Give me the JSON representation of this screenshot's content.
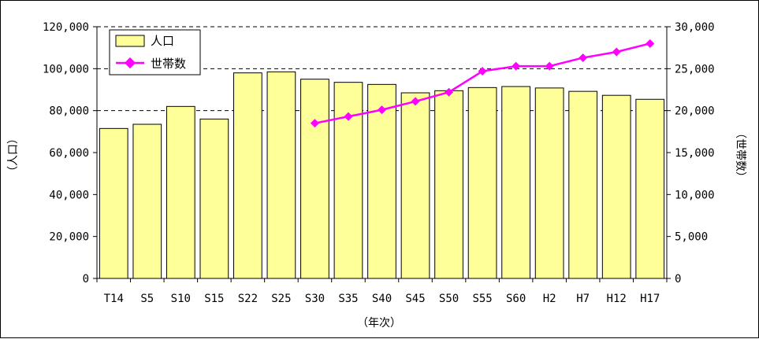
{
  "chart_data": {
    "type": "bar+line",
    "categories": [
      "T14",
      "S5",
      "S10",
      "S15",
      "S22",
      "S25",
      "S30",
      "S35",
      "S40",
      "S45",
      "S50",
      "S55",
      "S60",
      "H2",
      "H7",
      "H12",
      "H17"
    ],
    "series": [
      {
        "name": "人口",
        "type": "bar",
        "axis": "left",
        "color": "#FFFF99",
        "values": [
          71500,
          73500,
          82000,
          76000,
          98000,
          98500,
          95000,
          93500,
          92500,
          88500,
          89500,
          91000,
          91500,
          90800,
          89200,
          87300,
          85400
        ]
      },
      {
        "name": "世帯数",
        "type": "line",
        "axis": "right",
        "color": "#FF00FF",
        "values": [
          null,
          null,
          null,
          null,
          null,
          null,
          18500,
          19300,
          20100,
          21100,
          22200,
          24700,
          25300,
          25300,
          26300,
          27000,
          28000
        ]
      }
    ],
    "xlabel": "（年次）",
    "ylabel_left": "（人口）",
    "ylabel_right": "（世帯数）",
    "ylim_left": [
      0,
      120000
    ],
    "ylim_right": [
      0,
      30000
    ],
    "yticks_left": [
      "0",
      "20,000",
      "40,000",
      "60,000",
      "80,000",
      "100,000",
      "120,000"
    ],
    "yticks_right": [
      "0",
      "5,000",
      "10,000",
      "15,000",
      "20,000",
      "25,000",
      "30,000"
    ],
    "grid": "dashed horizontal at 80,000, 100,000, 120,000",
    "legend": "top-left"
  }
}
